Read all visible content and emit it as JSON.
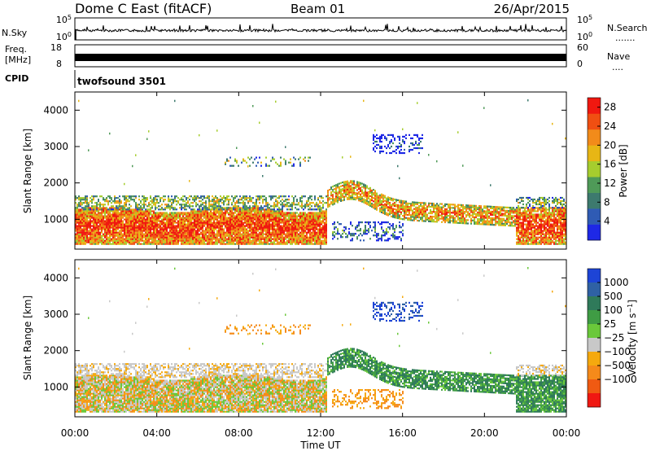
{
  "header": {
    "station": "Dome C East (fitACF)",
    "beam": "Beam 01",
    "date": "26/Apr/2015"
  },
  "side_labels": {
    "nsky": "N.Sky",
    "nsearch": "N.Search",
    "nsearch_dots": ".......",
    "freq_line1": "Freq.",
    "freq_line2": "[MHz]",
    "nave": "Nave",
    "nave_dots": "....",
    "cpid": "CPID"
  },
  "strip_ticks": {
    "noise_left_top": "10^5",
    "noise_left_bottom": "10^0",
    "noise_right_top": "10^5",
    "noise_right_bottom": "10^0",
    "freq_left_top": "18",
    "freq_left_bottom": "8",
    "freq_right_top": "60",
    "freq_right_bottom": "0"
  },
  "cpid_text": "twofsound 3501",
  "x_axis": {
    "label": "Time UT",
    "ticks": [
      "00:00",
      "04:00",
      "08:00",
      "12:00",
      "16:00",
      "20:00",
      "00:00"
    ]
  },
  "colors": {
    "power": [
      "#1e28e6",
      "#2f5bb4",
      "#3d7a6e",
      "#4f9a58",
      "#a6cd2e",
      "#e7b615",
      "#f28b1a",
      "#f04f12",
      "#f01810"
    ],
    "velocity": [
      "#1d44d6",
      "#2f61a4",
      "#2f7a5a",
      "#3f9c44",
      "#6ac83a",
      "#c8c8c8",
      "#f5a90e",
      "#f58a1a",
      "#f05a12",
      "#f01812"
    ]
  },
  "chart_data": [
    {
      "type": "heatmap",
      "panel": "power",
      "ylabel": "Slant Range [km]",
      "y_ticks": [
        "1000",
        "2000",
        "3000",
        "4000"
      ],
      "ylim": [
        180,
        4500
      ],
      "xlim_hours": [
        0,
        24
      ],
      "colorbar_label": "Power [dB]",
      "colorbar_ticks": [
        "4",
        "8",
        "12",
        "16",
        "20",
        "24",
        "28"
      ],
      "colorbar_range": [
        0,
        30
      ]
    },
    {
      "type": "heatmap",
      "panel": "velocity",
      "ylabel": "Slant Range [km]",
      "y_ticks": [
        "1000",
        "2000",
        "3000",
        "4000"
      ],
      "ylim": [
        180,
        4500
      ],
      "xlim_hours": [
        0,
        24
      ],
      "colorbar_label": "Velocity [m s^-1]",
      "colorbar_ticks": [
        "1000",
        "500",
        "100",
        "25",
        "−25",
        "−100",
        "−500",
        "−1000"
      ]
    }
  ]
}
